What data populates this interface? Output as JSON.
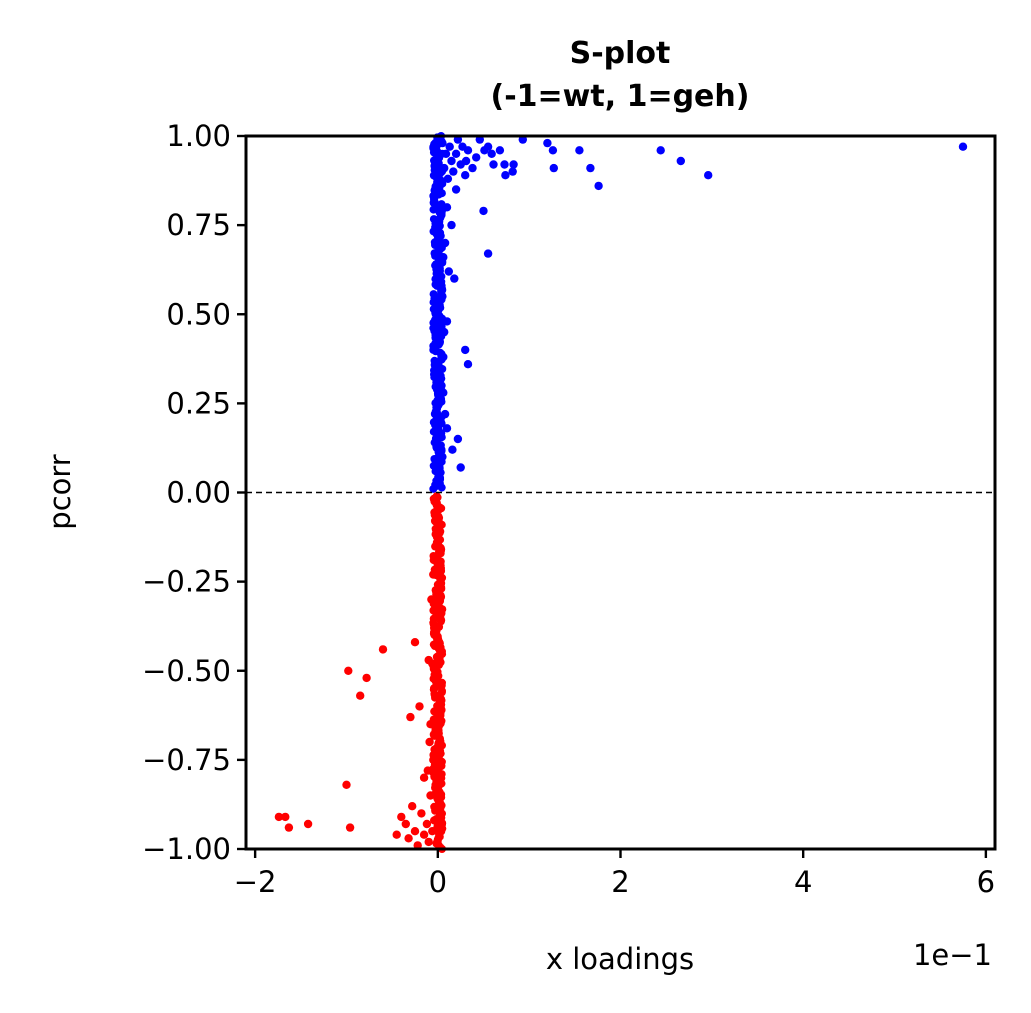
{
  "chart_data": {
    "type": "scatter",
    "title": "S-plot",
    "subtitle": "(-1=wt, 1=geh)",
    "xlabel": "x loadings",
    "ylabel": "pcorr",
    "x_offset_label": "1e−1",
    "x_scale_note": "x tick labels are in units of 1e-1",
    "xlim": [
      -2.1,
      6.1
    ],
    "ylim": [
      -1.0,
      1.0
    ],
    "x_ticks": [
      -2,
      0,
      2,
      4,
      6
    ],
    "x_tick_labels": [
      "−2",
      "0",
      "2",
      "4",
      "6"
    ],
    "y_ticks": [
      -1.0,
      -0.75,
      -0.5,
      -0.25,
      0.0,
      0.25,
      0.5,
      0.75,
      1.0
    ],
    "y_tick_labels": [
      "−1.00",
      "−0.75",
      "−0.50",
      "−0.25",
      "0.00",
      "0.25",
      "0.50",
      "0.75",
      "1.00"
    ],
    "reference_line": {
      "y": 0.0,
      "style": "dashed",
      "color": "#000000"
    },
    "grid": false,
    "legend": "none",
    "series": [
      {
        "color": "#0000ff",
        "points": [
          [
            5.75,
            0.97
          ],
          [
            2.96,
            0.89
          ],
          [
            2.66,
            0.93
          ],
          [
            2.44,
            0.96
          ],
          [
            1.76,
            0.86
          ],
          [
            1.67,
            0.91
          ],
          [
            1.55,
            0.96
          ],
          [
            1.26,
            0.96
          ],
          [
            1.2,
            0.98
          ],
          [
            1.27,
            0.91
          ],
          [
            0.93,
            0.99
          ],
          [
            0.83,
            0.92
          ],
          [
            0.82,
            0.9
          ],
          [
            0.73,
            0.92
          ],
          [
            0.74,
            0.89
          ],
          [
            0.68,
            0.96
          ],
          [
            0.59,
            0.95
          ],
          [
            0.61,
            0.92
          ],
          [
            0.55,
            0.97
          ],
          [
            0.51,
            0.96
          ],
          [
            0.46,
            0.99
          ],
          [
            0.42,
            0.94
          ],
          [
            0.38,
            0.91
          ],
          [
            0.33,
            0.96
          ],
          [
            0.31,
            0.93
          ],
          [
            0.3,
            0.89
          ],
          [
            0.27,
            0.97
          ],
          [
            0.25,
            0.92
          ],
          [
            0.22,
            0.99
          ],
          [
            0.2,
            0.95
          ],
          [
            0.17,
            0.9
          ],
          [
            0.15,
            0.93
          ],
          [
            0.13,
            0.97
          ],
          [
            0.11,
            0.88
          ],
          [
            0.09,
            0.95
          ],
          [
            0.07,
            0.91
          ],
          [
            0.05,
            0.98
          ],
          [
            0.5,
            0.79
          ],
          [
            0.55,
            0.67
          ],
          [
            0.2,
            0.85
          ],
          [
            0.1,
            0.8
          ],
          [
            0.15,
            0.75
          ],
          [
            0.08,
            0.7
          ],
          [
            0.12,
            0.62
          ],
          [
            0.18,
            0.6
          ],
          [
            0.05,
            0.55
          ],
          [
            0.1,
            0.48
          ],
          [
            0.07,
            0.45
          ],
          [
            0.3,
            0.4
          ],
          [
            0.33,
            0.36
          ],
          [
            0.06,
            0.38
          ],
          [
            0.04,
            0.3
          ],
          [
            0.08,
            0.22
          ],
          [
            0.1,
            0.18
          ],
          [
            0.22,
            0.15
          ],
          [
            0.16,
            0.12
          ],
          [
            0.25,
            0.07
          ],
          [
            0.05,
            0.1
          ],
          [
            0.03,
            0.2
          ],
          [
            0.06,
            0.28
          ],
          [
            0.02,
            0.42
          ],
          [
            0.04,
            0.58
          ],
          [
            0.03,
            0.72
          ],
          [
            0.02,
            0.84
          ],
          [
            0.06,
            0.66
          ]
        ],
        "dense_band": {
          "x_range": [
            -0.05,
            0.05
          ],
          "y_range": [
            0.01,
            1.0
          ]
        }
      },
      {
        "color": "#ff0000",
        "points": [
          [
            -1.74,
            -0.91
          ],
          [
            -1.67,
            -0.91
          ],
          [
            -1.63,
            -0.94
          ],
          [
            -1.42,
            -0.93
          ],
          [
            -0.96,
            -0.94
          ],
          [
            -0.98,
            -0.5
          ],
          [
            -0.85,
            -0.57
          ],
          [
            -0.78,
            -0.52
          ],
          [
            -0.6,
            -0.44
          ],
          [
            -0.25,
            -0.42
          ],
          [
            -0.3,
            -0.63
          ],
          [
            -0.2,
            -0.6
          ],
          [
            -1.0,
            -0.82
          ],
          [
            -0.4,
            -0.91
          ],
          [
            -0.45,
            -0.96
          ],
          [
            -0.35,
            -0.93
          ],
          [
            -0.32,
            -0.97
          ],
          [
            -0.28,
            -0.88
          ],
          [
            -0.25,
            -0.95
          ],
          [
            -0.22,
            -0.99
          ],
          [
            -0.18,
            -0.9
          ],
          [
            -0.15,
            -0.96
          ],
          [
            -0.12,
            -0.93
          ],
          [
            -0.1,
            -0.98
          ],
          [
            -0.08,
            -0.85
          ],
          [
            -0.06,
            -0.95
          ],
          [
            -0.05,
            -0.75
          ],
          [
            -0.08,
            -0.65
          ],
          [
            -0.04,
            -0.55
          ],
          [
            -0.06,
            -0.48
          ],
          [
            -0.1,
            -0.47
          ],
          [
            -0.04,
            -0.38
          ],
          [
            -0.03,
            -0.3
          ],
          [
            -0.07,
            -0.3
          ],
          [
            -0.05,
            -0.23
          ],
          [
            -0.02,
            -0.15
          ],
          [
            -0.03,
            -0.08
          ],
          [
            -0.09,
            -0.7
          ],
          [
            -0.11,
            -0.78
          ],
          [
            -0.15,
            -0.8
          ]
        ],
        "dense_band": {
          "x_range": [
            -0.05,
            0.05
          ],
          "y_range": [
            -1.0,
            -0.01
          ]
        }
      }
    ]
  }
}
